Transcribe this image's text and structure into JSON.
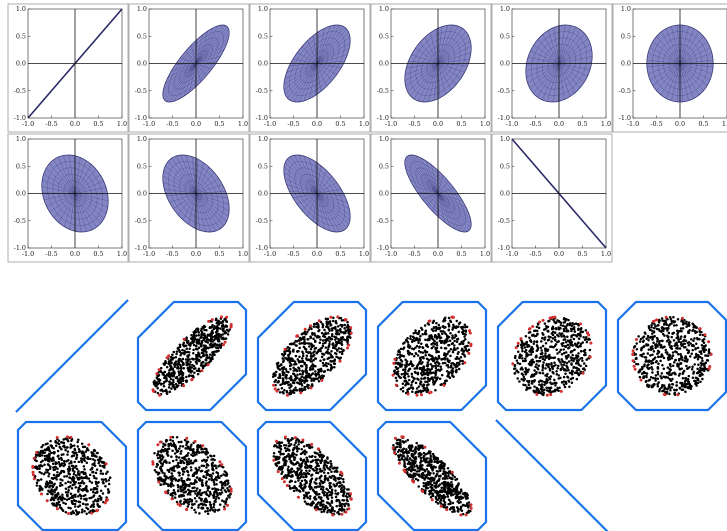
{
  "colors": {
    "ellipse_fill": "#6f70b8",
    "ellipse_mesh": "#2e2f6e",
    "diagonal_line": "#2a2a66",
    "hull": "#1a73e8",
    "points": "#000000",
    "hull_points": "#d32f2f",
    "panel_border": "#999999"
  },
  "top_grid": {
    "axis_ticks_x": [
      "-1.0",
      "-0.5",
      "0.0",
      "0.5",
      "1.0"
    ],
    "axis_ticks_y": [
      "1.0",
      "0.5",
      "0.0",
      "-0.5",
      "-1.0"
    ],
    "rows": [
      [
        {
          "correlation": 1.0
        },
        {
          "correlation": 0.8
        },
        {
          "correlation": 0.6
        },
        {
          "correlation": 0.4
        },
        {
          "correlation": 0.2
        },
        {
          "correlation": 0.0
        }
      ],
      [
        {
          "correlation": -0.2
        },
        {
          "correlation": -0.4
        },
        {
          "correlation": -0.6
        },
        {
          "correlation": -0.8
        },
        {
          "correlation": -1.0
        }
      ]
    ]
  },
  "bottom_grid": {
    "points_per_panel": 600,
    "rows": [
      [
        {
          "correlation": 1.0
        },
        {
          "correlation": 0.8
        },
        {
          "correlation": 0.6
        },
        {
          "correlation": 0.4
        },
        {
          "correlation": 0.2
        },
        {
          "correlation": 0.0
        }
      ],
      [
        {
          "correlation": -0.2
        },
        {
          "correlation": -0.4
        },
        {
          "correlation": -0.6
        },
        {
          "correlation": -0.8
        },
        {
          "correlation": -1.0
        }
      ]
    ]
  }
}
